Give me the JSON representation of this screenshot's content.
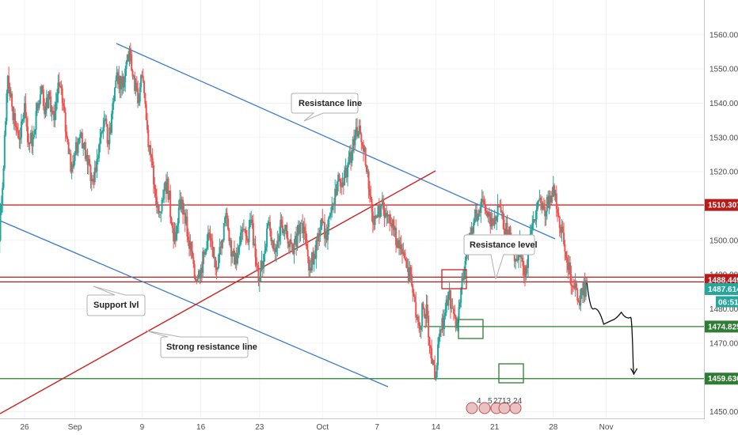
{
  "chart_data": {
    "type": "candlestick",
    "x_tick_labels": [
      "26",
      "Sep",
      "9",
      "16",
      "23",
      "Oct",
      "7",
      "14",
      "21",
      "28",
      "Nov"
    ],
    "y_tick_labels": [
      "1450.000",
      "1460.000",
      "1470.000",
      "1480.000",
      "1490.000",
      "1500.000",
      "1510.000",
      "1520.000",
      "1530.000",
      "1540.000",
      "1550.000",
      "1560.000"
    ],
    "y_range": [
      1449,
      1562
    ],
    "x_range": [
      22,
      117
    ],
    "key_levels": [
      {
        "label": "1510.307",
        "value": 1510.307,
        "color": "#b71c1c"
      },
      {
        "label": "1488.449",
        "value": 1488.449,
        "color": "#b71c1c"
      },
      {
        "label": "1474.825",
        "value": 1474.825,
        "color": "#2e7d32"
      },
      {
        "label": "1459.636",
        "value": 1459.636,
        "color": "#2e7d32"
      }
    ],
    "current_price": {
      "label": "1487.614",
      "value": 1487.614,
      "timer": "06:51",
      "color": "#26a69a"
    },
    "annotations": [
      "Resistance line",
      "Resistance level",
      "Support lvl",
      "Strong resistance line"
    ],
    "event_badges": [
      "4",
      "5",
      "27",
      "13",
      "24"
    ],
    "price_path": [
      [
        22,
        1498
      ],
      [
        22.5,
        1493
      ],
      [
        23,
        1500
      ],
      [
        23.5,
        1521
      ],
      [
        24,
        1548
      ],
      [
        24.5,
        1539
      ],
      [
        25,
        1533
      ],
      [
        25.5,
        1530
      ],
      [
        26,
        1540
      ],
      [
        26.5,
        1528
      ],
      [
        27,
        1530
      ],
      [
        27.5,
        1540
      ],
      [
        28,
        1545
      ],
      [
        28.5,
        1538
      ],
      [
        29,
        1542
      ],
      [
        29.5,
        1535
      ],
      [
        30,
        1546
      ],
      [
        30.5,
        1540
      ],
      [
        31,
        1530
      ],
      [
        31.5,
        1520
      ],
      [
        32,
        1525
      ],
      [
        32.5,
        1530
      ],
      [
        33,
        1528
      ],
      [
        33.5,
        1522
      ],
      [
        34,
        1518
      ],
      [
        34.5,
        1520
      ],
      [
        35,
        1530
      ],
      [
        35.5,
        1535
      ],
      [
        36,
        1528
      ],
      [
        36.5,
        1540
      ],
      [
        37,
        1549
      ],
      [
        37.5,
        1545
      ],
      [
        38,
        1550
      ],
      [
        38.5,
        1556
      ],
      [
        39,
        1548
      ],
      [
        39.5,
        1540
      ],
      [
        40,
        1548
      ],
      [
        40.5,
        1535
      ],
      [
        41,
        1525
      ],
      [
        41.5,
        1515
      ],
      [
        42,
        1508
      ],
      [
        42.5,
        1512
      ],
      [
        43,
        1518
      ],
      [
        43.5,
        1505
      ],
      [
        44,
        1500
      ],
      [
        44.5,
        1512
      ],
      [
        45,
        1508
      ],
      [
        45.5,
        1500
      ],
      [
        46,
        1495
      ],
      [
        46.5,
        1488
      ],
      [
        47,
        1492
      ],
      [
        47.5,
        1496
      ],
      [
        48,
        1502
      ],
      [
        48.5,
        1495
      ],
      [
        49,
        1492
      ],
      [
        49.5,
        1500
      ],
      [
        50,
        1508
      ],
      [
        50.5,
        1500
      ],
      [
        51,
        1493
      ],
      [
        51.5,
        1498
      ],
      [
        52,
        1503
      ],
      [
        52.5,
        1500
      ],
      [
        53,
        1506
      ],
      [
        53.5,
        1495
      ],
      [
        54,
        1488
      ],
      [
        54.5,
        1496
      ],
      [
        55,
        1505
      ],
      [
        55.5,
        1500
      ],
      [
        56,
        1498
      ],
      [
        56.5,
        1506
      ],
      [
        57,
        1503
      ],
      [
        57.5,
        1498
      ],
      [
        58,
        1496
      ],
      [
        58.5,
        1502
      ],
      [
        59,
        1505
      ],
      [
        59.5,
        1499
      ],
      [
        60,
        1492
      ],
      [
        60.5,
        1496
      ],
      [
        61,
        1502
      ],
      [
        61.5,
        1505
      ],
      [
        62,
        1500
      ],
      [
        62.5,
        1508
      ],
      [
        63,
        1515
      ],
      [
        63.5,
        1518
      ],
      [
        64,
        1516
      ],
      [
        64.5,
        1522
      ],
      [
        65,
        1526
      ],
      [
        65.5,
        1533
      ],
      [
        66,
        1531
      ],
      [
        66.5,
        1527
      ],
      [
        67,
        1515
      ],
      [
        67.5,
        1505
      ],
      [
        68,
        1507
      ],
      [
        68.5,
        1510
      ],
      [
        69,
        1508
      ],
      [
        69.5,
        1505
      ],
      [
        70,
        1503
      ],
      [
        70.5,
        1500
      ],
      [
        71,
        1496
      ],
      [
        71.5,
        1492
      ],
      [
        72,
        1490
      ],
      [
        72.5,
        1482
      ],
      [
        73,
        1475
      ],
      [
        73.5,
        1480
      ],
      [
        74,
        1478
      ],
      [
        74.5,
        1464
      ],
      [
        75,
        1460
      ],
      [
        75.5,
        1474
      ],
      [
        76,
        1478
      ],
      [
        76.5,
        1485
      ],
      [
        77,
        1480
      ],
      [
        77.5,
        1476
      ],
      [
        78,
        1486
      ],
      [
        78.5,
        1494
      ],
      [
        79,
        1502
      ],
      [
        79.5,
        1505
      ],
      [
        80,
        1507
      ],
      [
        80.5,
        1512
      ],
      [
        81,
        1508
      ],
      [
        81.5,
        1504
      ],
      [
        82,
        1507
      ],
      [
        82.5,
        1510
      ],
      [
        83,
        1506
      ],
      [
        83.5,
        1502
      ],
      [
        84,
        1500
      ],
      [
        84.5,
        1494
      ],
      [
        85,
        1500
      ],
      [
        85.5,
        1490
      ],
      [
        86,
        1496
      ],
      [
        86.5,
        1505
      ],
      [
        87,
        1509
      ],
      [
        87.5,
        1511
      ],
      [
        88,
        1507
      ],
      [
        88.5,
        1513
      ],
      [
        89,
        1516
      ],
      [
        89.5,
        1508
      ],
      [
        90,
        1504
      ],
      [
        90.5,
        1495
      ],
      [
        91,
        1490
      ],
      [
        91.5,
        1486
      ],
      [
        92,
        1482
      ],
      [
        92.5,
        1484
      ],
      [
        93,
        1487.6
      ]
    ],
    "projected_path": [
      [
        93,
        1487.6
      ],
      [
        93.8,
        1480
      ],
      [
        95,
        1475.5
      ],
      [
        96.3,
        1477
      ],
      [
        97.1,
        1479
      ],
      [
        98.2,
        1477.5
      ],
      [
        98.5,
        1465
      ],
      [
        98.6,
        1461
      ]
    ]
  }
}
